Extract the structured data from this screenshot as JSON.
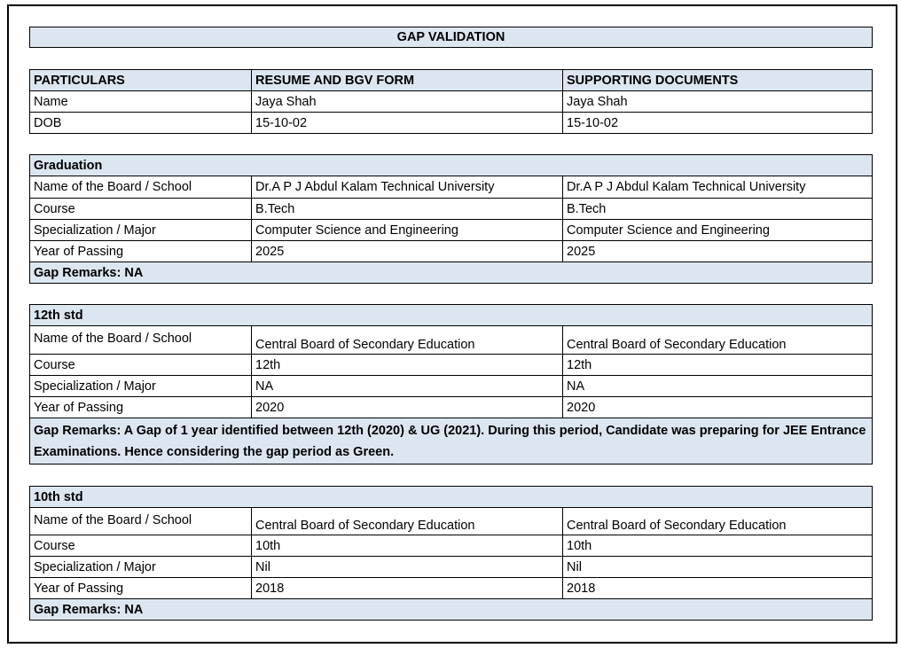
{
  "title": "GAP VALIDATION",
  "header": [
    "PARTICULARS",
    "RESUME AND BGV FORM",
    "SUPPORTING DOCUMENTS"
  ],
  "personal": [
    [
      "Name",
      "Jaya Shah",
      "Jaya Shah"
    ],
    [
      "DOB",
      "15-10-02",
      "15-10-02"
    ]
  ],
  "sections": [
    {
      "heading": "Graduation",
      "rows": [
        [
          "Name of the Board / School",
          "Dr.A P J Abdul Kalam Technical University",
          "Dr.A P J Abdul Kalam Technical University"
        ],
        [
          "Course",
          "B.Tech",
          "B.Tech"
        ],
        [
          "Specialization / Major",
          "Computer Science and Engineering",
          "Computer Science and Engineering"
        ],
        [
          "Year of Passing",
          "2025",
          "2025"
        ]
      ],
      "remarks": "Gap Remarks: NA"
    },
    {
      "heading": "12th std",
      "rows": [
        [
          "Name of the Board / School",
          "Central Board of Secondary Education",
          "Central Board of Secondary Education"
        ],
        [
          "Course",
          "12th",
          "12th"
        ],
        [
          "Specialization / Major",
          "NA",
          "NA"
        ],
        [
          "Year of Passing",
          "2020",
          "2020"
        ]
      ],
      "remarks": "Gap Remarks: A Gap of 1 year identified between 12th (2020) & UG (2021). During this period, Candidate was preparing for JEE Entrance Examinations. Hence considering the gap period as Green."
    },
    {
      "heading": "10th std",
      "rows": [
        [
          "Name of the Board / School",
          "Central Board of Secondary Education",
          "Central Board of Secondary Education"
        ],
        [
          "Course",
          "10th",
          "10th"
        ],
        [
          "Specialization / Major",
          "Nil",
          "Nil"
        ],
        [
          "Year of Passing",
          "2018",
          "2018"
        ]
      ],
      "remarks": "Gap Remarks: NA"
    }
  ]
}
